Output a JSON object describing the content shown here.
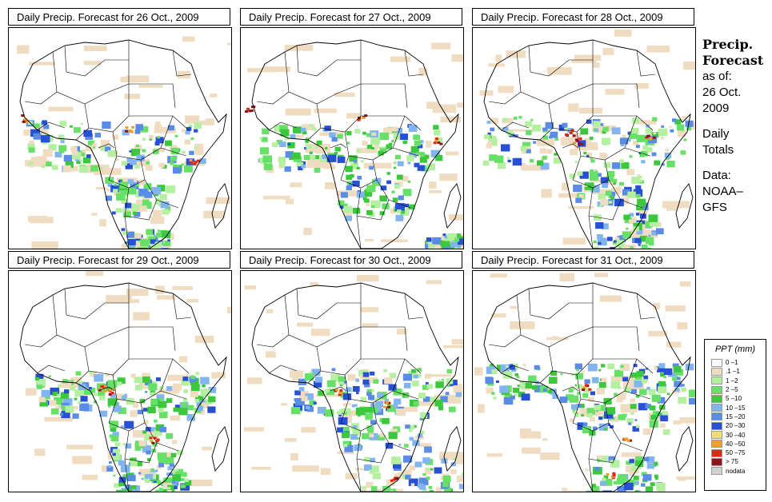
{
  "panels": [
    {
      "title": "Daily Precip. Forecast for  26 Oct., 2009"
    },
    {
      "title": "Daily Precip. Forecast for  27 Oct., 2009"
    },
    {
      "title": "Daily Precip. Forecast for  28 Oct., 2009"
    },
    {
      "title": "Daily Precip. Forecast for  29 Oct., 2009"
    },
    {
      "title": "Daily Precip. Forecast for  30 Oct., 2009"
    },
    {
      "title": "Daily Precip. Forecast for  31 Oct., 2009"
    }
  ],
  "side": {
    "heading_line1": "Precip.",
    "heading_line2": "Forecast",
    "asof_line1": "as of:",
    "asof_line2": "26 Oct.",
    "asof_line3": "2009",
    "totals_line1": "Daily",
    "totals_line2": "Totals",
    "data_line1": "Data:",
    "data_line2": "NOAA–",
    "data_line3": "GFS"
  },
  "legend": {
    "title": "PPT (mm)",
    "items": [
      {
        "label": "0 –1",
        "color": "#ffffff"
      },
      {
        "label": ".1 –1",
        "color": "#f0dcc0"
      },
      {
        "label": "1 –2",
        "color": "#b4f0a0"
      },
      {
        "label": "2 –5",
        "color": "#66e066"
      },
      {
        "label": "5 –10",
        "color": "#3cc83c"
      },
      {
        "label": "10 –15",
        "color": "#82b4f0"
      },
      {
        "label": "15 –20",
        "color": "#5a8ce6"
      },
      {
        "label": "20 –30",
        "color": "#2850d2"
      },
      {
        "label": "30 –40",
        "color": "#f0e06e"
      },
      {
        "label": "40 –50",
        "color": "#f0a028"
      },
      {
        "label": "50 –75",
        "color": "#e02814"
      },
      {
        "label": "> 75",
        "color": "#8c1414"
      },
      {
        "label": "nodata",
        "color": "#d2d2d2"
      }
    ]
  }
}
